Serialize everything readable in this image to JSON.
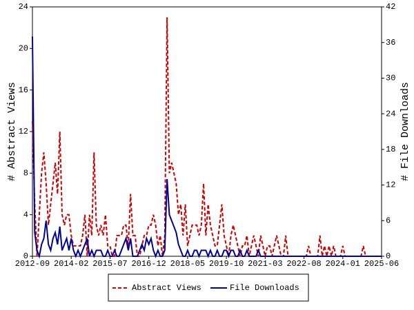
{
  "chart_data": {
    "type": "line",
    "y_label": "# Abstract Views",
    "y2_label": "# File Downloads",
    "x": [
      "2012-09",
      "2012-10",
      "2012-11",
      "2012-12",
      "2013-01",
      "2013-02",
      "2013-03",
      "2013-04",
      "2013-05",
      "2013-06",
      "2013-07",
      "2013-08",
      "2013-09",
      "2013-10",
      "2013-11",
      "2013-12",
      "2014-01",
      "2014-02",
      "2014-03",
      "2014-04",
      "2014-05",
      "2014-06",
      "2014-07",
      "2014-08",
      "2014-09",
      "2014-10",
      "2014-11",
      "2014-12",
      "2015-01",
      "2015-02",
      "2015-03",
      "2015-04",
      "2015-05",
      "2015-06",
      "2015-07",
      "2015-08",
      "2015-09",
      "2015-10",
      "2015-11",
      "2015-12",
      "2016-01",
      "2016-02",
      "2016-03",
      "2016-04",
      "2016-05",
      "2016-06",
      "2016-07",
      "2016-08",
      "2016-09",
      "2016-10",
      "2016-11",
      "2016-12",
      "2017-01",
      "2017-02",
      "2017-03",
      "2017-04",
      "2017-05",
      "2017-06",
      "2017-07",
      "2017-08",
      "2017-09",
      "2017-10",
      "2017-11",
      "2017-12",
      "2018-01",
      "2018-02",
      "2018-03",
      "2018-04",
      "2018-05",
      "2018-06",
      "2018-07",
      "2018-08",
      "2018-09",
      "2018-10",
      "2018-11",
      "2018-12",
      "2019-01",
      "2019-02",
      "2019-03",
      "2019-04",
      "2019-05",
      "2019-06",
      "2019-07",
      "2019-08",
      "2019-09",
      "2019-10",
      "2019-11",
      "2019-12",
      "2020-01",
      "2020-02",
      "2020-03",
      "2020-04",
      "2020-05",
      "2020-06",
      "2020-07",
      "2020-08",
      "2020-09",
      "2020-10",
      "2020-11",
      "2020-12",
      "2021-01",
      "2021-02",
      "2021-03",
      "2021-04",
      "2021-05",
      "2021-06",
      "2021-07",
      "2021-08",
      "2021-09",
      "2021-10",
      "2021-11",
      "2021-12",
      "2022-01",
      "2022-02",
      "2022-03",
      "2022-04",
      "2022-05",
      "2022-06",
      "2022-07",
      "2022-08",
      "2022-09",
      "2022-10",
      "2022-11",
      "2022-12",
      "2023-01",
      "2023-02",
      "2023-03",
      "2023-04",
      "2023-05",
      "2023-06",
      "2023-07",
      "2023-08",
      "2023-09",
      "2023-10",
      "2023-11",
      "2023-12",
      "2024-01",
      "2024-02",
      "2024-03",
      "2024-04",
      "2024-05",
      "2024-06",
      "2024-07",
      "2024-08",
      "2024-09",
      "2024-10",
      "2024-11",
      "2024-12",
      "2025-01",
      "2025-02",
      "2025-03",
      "2025-04",
      "2025-05",
      "2025-06"
    ],
    "xticks": [
      "2012-09",
      "2014-02",
      "2015-07",
      "2016-12",
      "2018-05",
      "2019-10",
      "2021-03",
      "2022-08",
      "2024-01",
      "2025-06"
    ],
    "ylim": [
      0,
      24
    ],
    "yticks": [
      0,
      4,
      8,
      12,
      16,
      20,
      24
    ],
    "y2lim": [
      0,
      42
    ],
    "y2ticks": [
      0,
      6,
      12,
      18,
      24,
      30,
      36,
      42
    ],
    "legend": "bottom",
    "series": [
      {
        "name": "Abstract Views",
        "color": "#cc0000",
        "dash": true,
        "values": [
          13,
          5,
          0,
          4,
          8,
          10,
          7,
          3,
          5,
          7,
          9,
          6,
          12,
          4,
          3,
          4,
          4,
          2,
          1,
          1,
          1,
          1,
          2,
          4,
          0,
          4,
          2,
          10,
          3,
          2,
          3,
          2,
          4,
          1,
          1,
          0,
          0,
          2,
          2,
          2,
          3,
          3,
          1,
          6,
          2,
          2,
          0,
          0,
          1,
          2,
          2,
          3,
          3,
          4,
          3,
          1,
          2,
          0,
          2,
          23,
          8,
          9,
          8,
          7,
          4,
          5,
          2,
          5,
          1,
          2,
          3,
          3,
          3,
          2,
          3,
          7,
          2,
          5,
          3,
          2,
          1,
          1,
          3,
          5,
          2,
          1,
          0,
          2,
          3,
          2,
          1,
          0,
          1,
          1,
          2,
          0,
          1,
          2,
          1,
          0,
          2,
          1,
          0,
          1,
          1,
          0,
          1,
          2,
          1,
          0,
          0,
          2,
          0,
          0,
          0,
          0,
          0,
          0,
          0,
          0,
          0,
          1,
          0,
          0,
          0,
          0,
          2,
          0,
          1,
          0,
          1,
          0,
          1,
          0,
          0,
          0,
          1,
          0,
          0,
          0,
          0,
          0,
          0,
          0,
          0,
          1,
          0,
          0,
          0,
          0,
          0,
          0,
          0,
          0
        ]
      },
      {
        "name": "File Downloads",
        "color": "#000099",
        "dash": false,
        "axis": "y2",
        "values": [
          37,
          4,
          1,
          0,
          2,
          3,
          6,
          2,
          1,
          3,
          4,
          2,
          5,
          1,
          2,
          3,
          1,
          3,
          1,
          0,
          1,
          0,
          1,
          2,
          3,
          0,
          1,
          0,
          1,
          1,
          1,
          0,
          0,
          1,
          0,
          0,
          1,
          0,
          0,
          1,
          2,
          3,
          1,
          3,
          0,
          0,
          0,
          1,
          2,
          1,
          3,
          2,
          3,
          1,
          0,
          1,
          0,
          0,
          1,
          13,
          7,
          6,
          5,
          4,
          2,
          1,
          0,
          0,
          1,
          0,
          0,
          1,
          1,
          0,
          1,
          1,
          1,
          0,
          1,
          0,
          0,
          1,
          0,
          0,
          1,
          1,
          0,
          1,
          1,
          0,
          0,
          1,
          0,
          0,
          1,
          0,
          0,
          0,
          0,
          1,
          0,
          0,
          0,
          0,
          0,
          0,
          0,
          0,
          0,
          0,
          0,
          0,
          0,
          0,
          0,
          0,
          0,
          0,
          0,
          0,
          0,
          0,
          0,
          0,
          0,
          0,
          0,
          0,
          0,
          0,
          0,
          0,
          0,
          0,
          0,
          0,
          0,
          0,
          0,
          0,
          0,
          0,
          0,
          0,
          0,
          0,
          0,
          0,
          0,
          0,
          0,
          0,
          0,
          0
        ]
      }
    ]
  }
}
